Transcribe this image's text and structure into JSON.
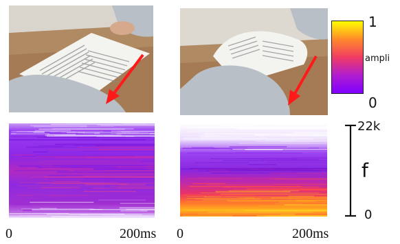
{
  "panels": {
    "photo_left": {
      "desc_icon": "red-arrow-icon"
    },
    "photo_right": {
      "desc_icon": "red-arrow-icon"
    },
    "spectrogram_left": {},
    "spectrogram_right": {}
  },
  "colorbar": {
    "label": "ampli",
    "max_label": "1",
    "min_label": "0",
    "colors": [
      "#7f00ff",
      "#d22aa8",
      "#ff4a3c",
      "#ffa21f",
      "#ffff00"
    ]
  },
  "freq_axis": {
    "label": "f",
    "max_label": "22k",
    "min_label": "0"
  },
  "time_axis": {
    "left_start": "0",
    "left_end": "200ms",
    "right_start": "0",
    "right_end": "200ms"
  },
  "colors": {
    "arrow": "#ff1a1a",
    "desk": "#a57b55",
    "sleeve": "#b8bfc6",
    "paper": "#f3f3ef"
  }
}
